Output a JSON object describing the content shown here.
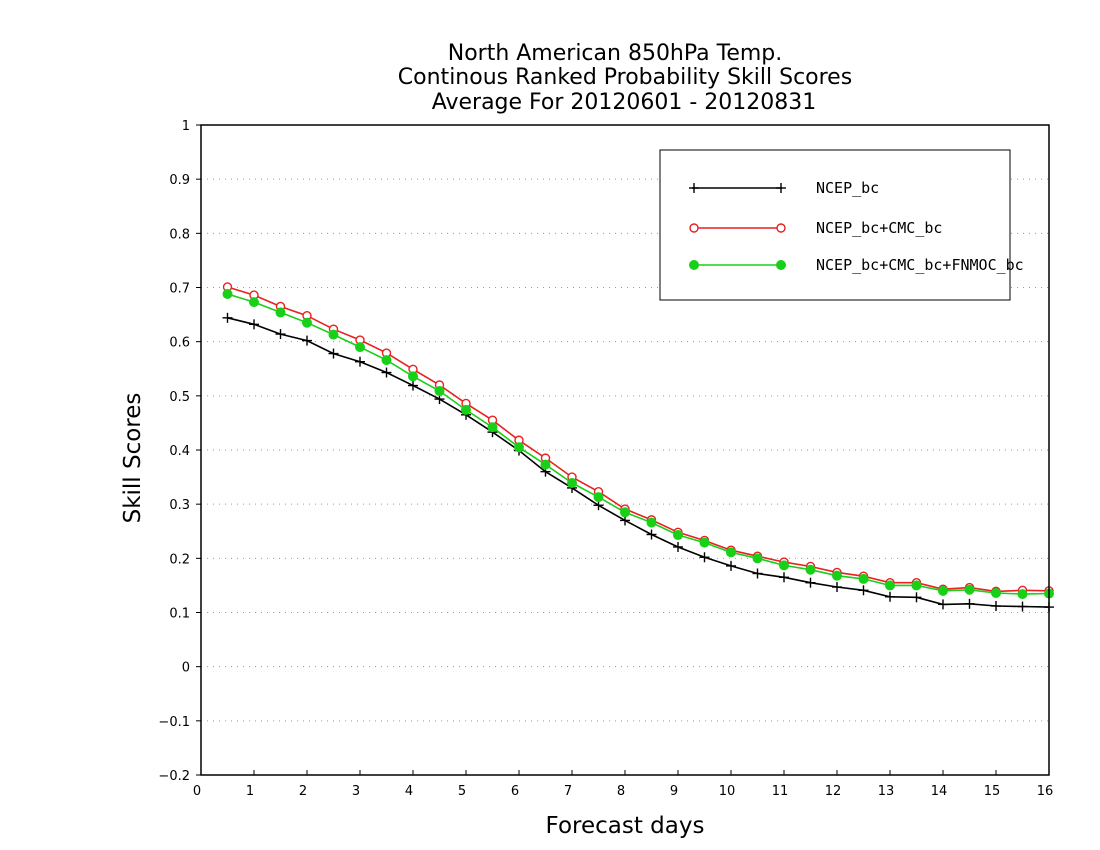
{
  "chart_data": {
    "type": "line",
    "title": [
      "North American 850hPa Temp.",
      "Continous Ranked Probability Skill Scores",
      "Average For 20120601 - 20120831"
    ],
    "xlabel": "Forecast days",
    "ylabel": "Skill Scores",
    "xlim": [
      0,
      16
    ],
    "ylim": [
      -0.2,
      1
    ],
    "xticks": [
      0,
      1,
      2,
      3,
      4,
      5,
      6,
      7,
      8,
      9,
      10,
      11,
      12,
      13,
      14,
      15,
      16
    ],
    "xtick_labels": [
      "0",
      "1",
      "2",
      "3",
      "4",
      "5",
      "6",
      "7",
      "8",
      "9",
      "10",
      "11",
      "12",
      "13",
      "14",
      "15",
      "16"
    ],
    "yticks": [
      -0.2,
      -0.1,
      0,
      0.1,
      0.2,
      0.3,
      0.4,
      0.5,
      0.6,
      0.7,
      0.8,
      0.9,
      1
    ],
    "ytick_labels": [
      "−0.2",
      "−0.1",
      "0",
      "0.1",
      "0.2",
      "0.3",
      "0.4",
      "0.5",
      "0.6",
      "0.7",
      "0.8",
      "0.9",
      "1"
    ],
    "grid": "horizontal dotted",
    "legend_position": "top-right",
    "x": [
      0.5,
      1,
      1.5,
      2,
      2.5,
      3,
      3.5,
      4,
      4.5,
      5,
      5.5,
      6,
      6.5,
      7,
      7.5,
      8,
      8.5,
      9,
      9.5,
      10,
      10.5,
      11,
      11.5,
      12,
      12.5,
      13,
      13.5,
      14,
      14.5,
      15,
      15.5,
      16
    ],
    "series": [
      {
        "name": "NCEP_bc",
        "color": "#000000",
        "marker": "plus",
        "values": [
          0.644,
          0.632,
          0.614,
          0.602,
          0.578,
          0.563,
          0.543,
          0.519,
          0.494,
          0.465,
          0.433,
          0.399,
          0.36,
          0.33,
          0.298,
          0.27,
          0.244,
          0.221,
          0.202,
          0.186,
          0.172,
          0.165,
          0.155,
          0.147,
          0.141,
          0.129,
          0.128,
          0.115,
          0.116,
          0.112,
          0.111,
          0.11
        ]
      },
      {
        "name": "NCEP_bc+CMC_bc",
        "color": "#e82020",
        "marker": "open-circle",
        "values": [
          0.701,
          0.686,
          0.665,
          0.648,
          0.623,
          0.603,
          0.579,
          0.549,
          0.52,
          0.486,
          0.455,
          0.418,
          0.385,
          0.35,
          0.323,
          0.291,
          0.271,
          0.248,
          0.233,
          0.215,
          0.204,
          0.193,
          0.185,
          0.174,
          0.167,
          0.155,
          0.155,
          0.143,
          0.146,
          0.139,
          0.141,
          0.14
        ]
      },
      {
        "name": "NCEP_bc+CMC_bc+FNMOC_bc",
        "color": "#18d018",
        "marker": "filled-circle",
        "values": [
          0.688,
          0.673,
          0.654,
          0.635,
          0.613,
          0.59,
          0.566,
          0.536,
          0.509,
          0.474,
          0.442,
          0.405,
          0.373,
          0.339,
          0.313,
          0.285,
          0.266,
          0.243,
          0.229,
          0.211,
          0.2,
          0.187,
          0.179,
          0.168,
          0.162,
          0.15,
          0.15,
          0.14,
          0.142,
          0.136,
          0.134,
          0.135
        ]
      }
    ]
  }
}
